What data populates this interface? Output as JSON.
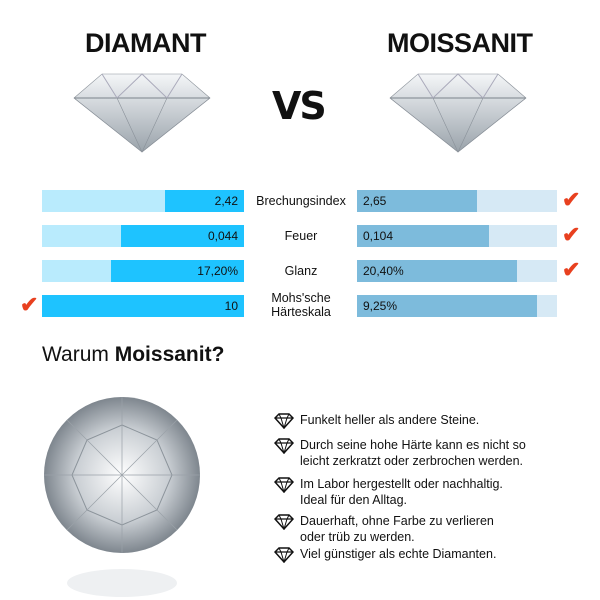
{
  "header": {
    "left_title": "DIAMANT",
    "vs": "VS",
    "right_title": "MOISSANIT"
  },
  "colors": {
    "diamant_fill": "#1ec3ff",
    "diamant_track": "#b9ebfd",
    "moissanit_fill": "#7dbbdc",
    "moissanit_track": "#d6e9f5",
    "check": "#e8401f"
  },
  "comparison": [
    {
      "label": "Brechungsindex",
      "diamant": "2,42",
      "diamant_fill": 0.39,
      "moissanit": "2,65",
      "moissanit_fill": 0.6,
      "winner": "moissanit"
    },
    {
      "label": "Feuer",
      "diamant": "0,044",
      "diamant_fill": 0.61,
      "moissanit": "0,104",
      "moissanit_fill": 0.66,
      "winner": "moissanit"
    },
    {
      "label": "Glanz",
      "diamant": "17,20%",
      "diamant_fill": 0.66,
      "moissanit": "20,40%",
      "moissanit_fill": 0.8,
      "winner": "moissanit"
    },
    {
      "label": "Mohs'sche Härteskala",
      "diamant": "10",
      "diamant_fill": 1.0,
      "moissanit": "9,25%",
      "moissanit_fill": 0.9,
      "winner": "diamant"
    }
  ],
  "why": {
    "prefix": "Warum ",
    "bold": "Moissanit?"
  },
  "features": [
    "Funkelt heller als andere Steine.",
    "Durch seine hohe Härte kann es nicht so leicht zerkratzt oder zerbrochen werden.",
    "Im Labor hergestellt oder nachhaltig. Ideal für den Alltag.",
    "Dauerhaft, ohne Farbe zu verlieren oder trüb zu werden.",
    "Viel günstiger als echte Diamanten."
  ]
}
